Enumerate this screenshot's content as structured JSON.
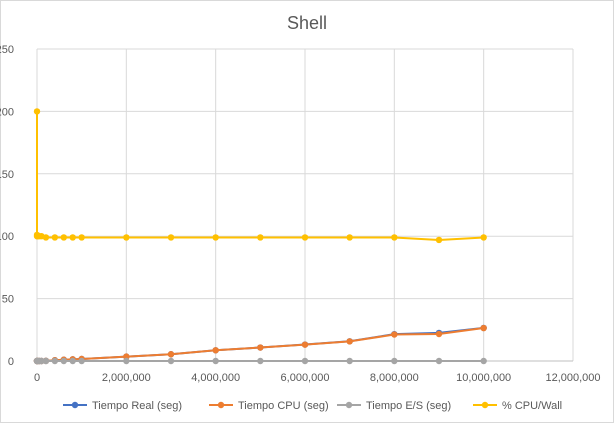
{
  "chart_data": {
    "type": "scatter",
    "title": "Shell",
    "xlabel": "",
    "ylabel": "",
    "xlim": [
      0,
      12000000
    ],
    "ylim": [
      0,
      250
    ],
    "x_ticks": [
      0,
      2000000,
      4000000,
      6000000,
      8000000,
      10000000,
      12000000
    ],
    "x_tick_labels": [
      "0",
      "2,000,000",
      "4,000,000",
      "6,000,000",
      "8,000,000",
      "10,000,000",
      "12,000,000"
    ],
    "y_ticks": [
      0,
      50,
      100,
      150,
      200,
      250
    ],
    "y_tick_labels": [
      "0",
      "50",
      "100",
      "150",
      "200",
      "250"
    ],
    "grid": true,
    "legend_position": "bottom",
    "lines_connected": true,
    "series": [
      {
        "name": "Tiempo Real (seg)",
        "color": "#4472C4",
        "points": [
          [
            10,
            0
          ],
          [
            100,
            0
          ],
          [
            1000,
            0
          ],
          [
            10000,
            0
          ],
          [
            50000,
            0
          ],
          [
            100000,
            0
          ],
          [
            200000,
            0.1
          ],
          [
            400000,
            0.6
          ],
          [
            600000,
            1
          ],
          [
            800000,
            1.3
          ],
          [
            1000000,
            1.6
          ],
          [
            2000000,
            3.5
          ],
          [
            3000000,
            5.4
          ],
          [
            4000000,
            8.6
          ],
          [
            5000000,
            10.8
          ],
          [
            6000000,
            13.2
          ],
          [
            7000000,
            15.8
          ],
          [
            8000000,
            21.5
          ],
          [
            9000000,
            22.5
          ],
          [
            10000000,
            26.5
          ]
        ]
      },
      {
        "name": "Tiempo CPU (seg)",
        "color": "#ED7D31",
        "points": [
          [
            10,
            0
          ],
          [
            100,
            0
          ],
          [
            1000,
            0
          ],
          [
            10000,
            0
          ],
          [
            50000,
            0
          ],
          [
            100000,
            0
          ],
          [
            200000,
            0.1
          ],
          [
            400000,
            0.6
          ],
          [
            600000,
            1
          ],
          [
            800000,
            1.3
          ],
          [
            1000000,
            1.6
          ],
          [
            2000000,
            3.5
          ],
          [
            3000000,
            5.4
          ],
          [
            4000000,
            8.6
          ],
          [
            5000000,
            10.8
          ],
          [
            6000000,
            13.1
          ],
          [
            7000000,
            15.7
          ],
          [
            8000000,
            21.2
          ],
          [
            9000000,
            21.6
          ],
          [
            10000000,
            26.4
          ]
        ]
      },
      {
        "name": "Tiempo E/S (seg)",
        "color": "#A5A5A5",
        "points": [
          [
            10,
            0
          ],
          [
            100,
            0
          ],
          [
            1000,
            0
          ],
          [
            10000,
            0
          ],
          [
            50000,
            0
          ],
          [
            100000,
            0
          ],
          [
            200000,
            0
          ],
          [
            400000,
            0
          ],
          [
            600000,
            0
          ],
          [
            800000,
            0
          ],
          [
            1000000,
            0
          ],
          [
            2000000,
            0
          ],
          [
            3000000,
            0
          ],
          [
            4000000,
            0
          ],
          [
            5000000,
            0
          ],
          [
            6000000,
            0
          ],
          [
            7000000,
            0
          ],
          [
            8000000,
            0
          ],
          [
            9000000,
            0
          ],
          [
            10000000,
            0
          ]
        ]
      },
      {
        "name": "% CPU/Wall",
        "color": "#FFC000",
        "points": [
          [
            10,
            200
          ],
          [
            100,
            101
          ],
          [
            1000,
            100
          ],
          [
            10000,
            100
          ],
          [
            50000,
            100
          ],
          [
            100000,
            100
          ],
          [
            200000,
            99
          ],
          [
            400000,
            99
          ],
          [
            600000,
            99
          ],
          [
            800000,
            99
          ],
          [
            1000000,
            99
          ],
          [
            2000000,
            99
          ],
          [
            3000000,
            99
          ],
          [
            4000000,
            99
          ],
          [
            5000000,
            99
          ],
          [
            6000000,
            99
          ],
          [
            7000000,
            99
          ],
          [
            8000000,
            99
          ],
          [
            9000000,
            97
          ],
          [
            10000000,
            99
          ]
        ]
      }
    ]
  }
}
